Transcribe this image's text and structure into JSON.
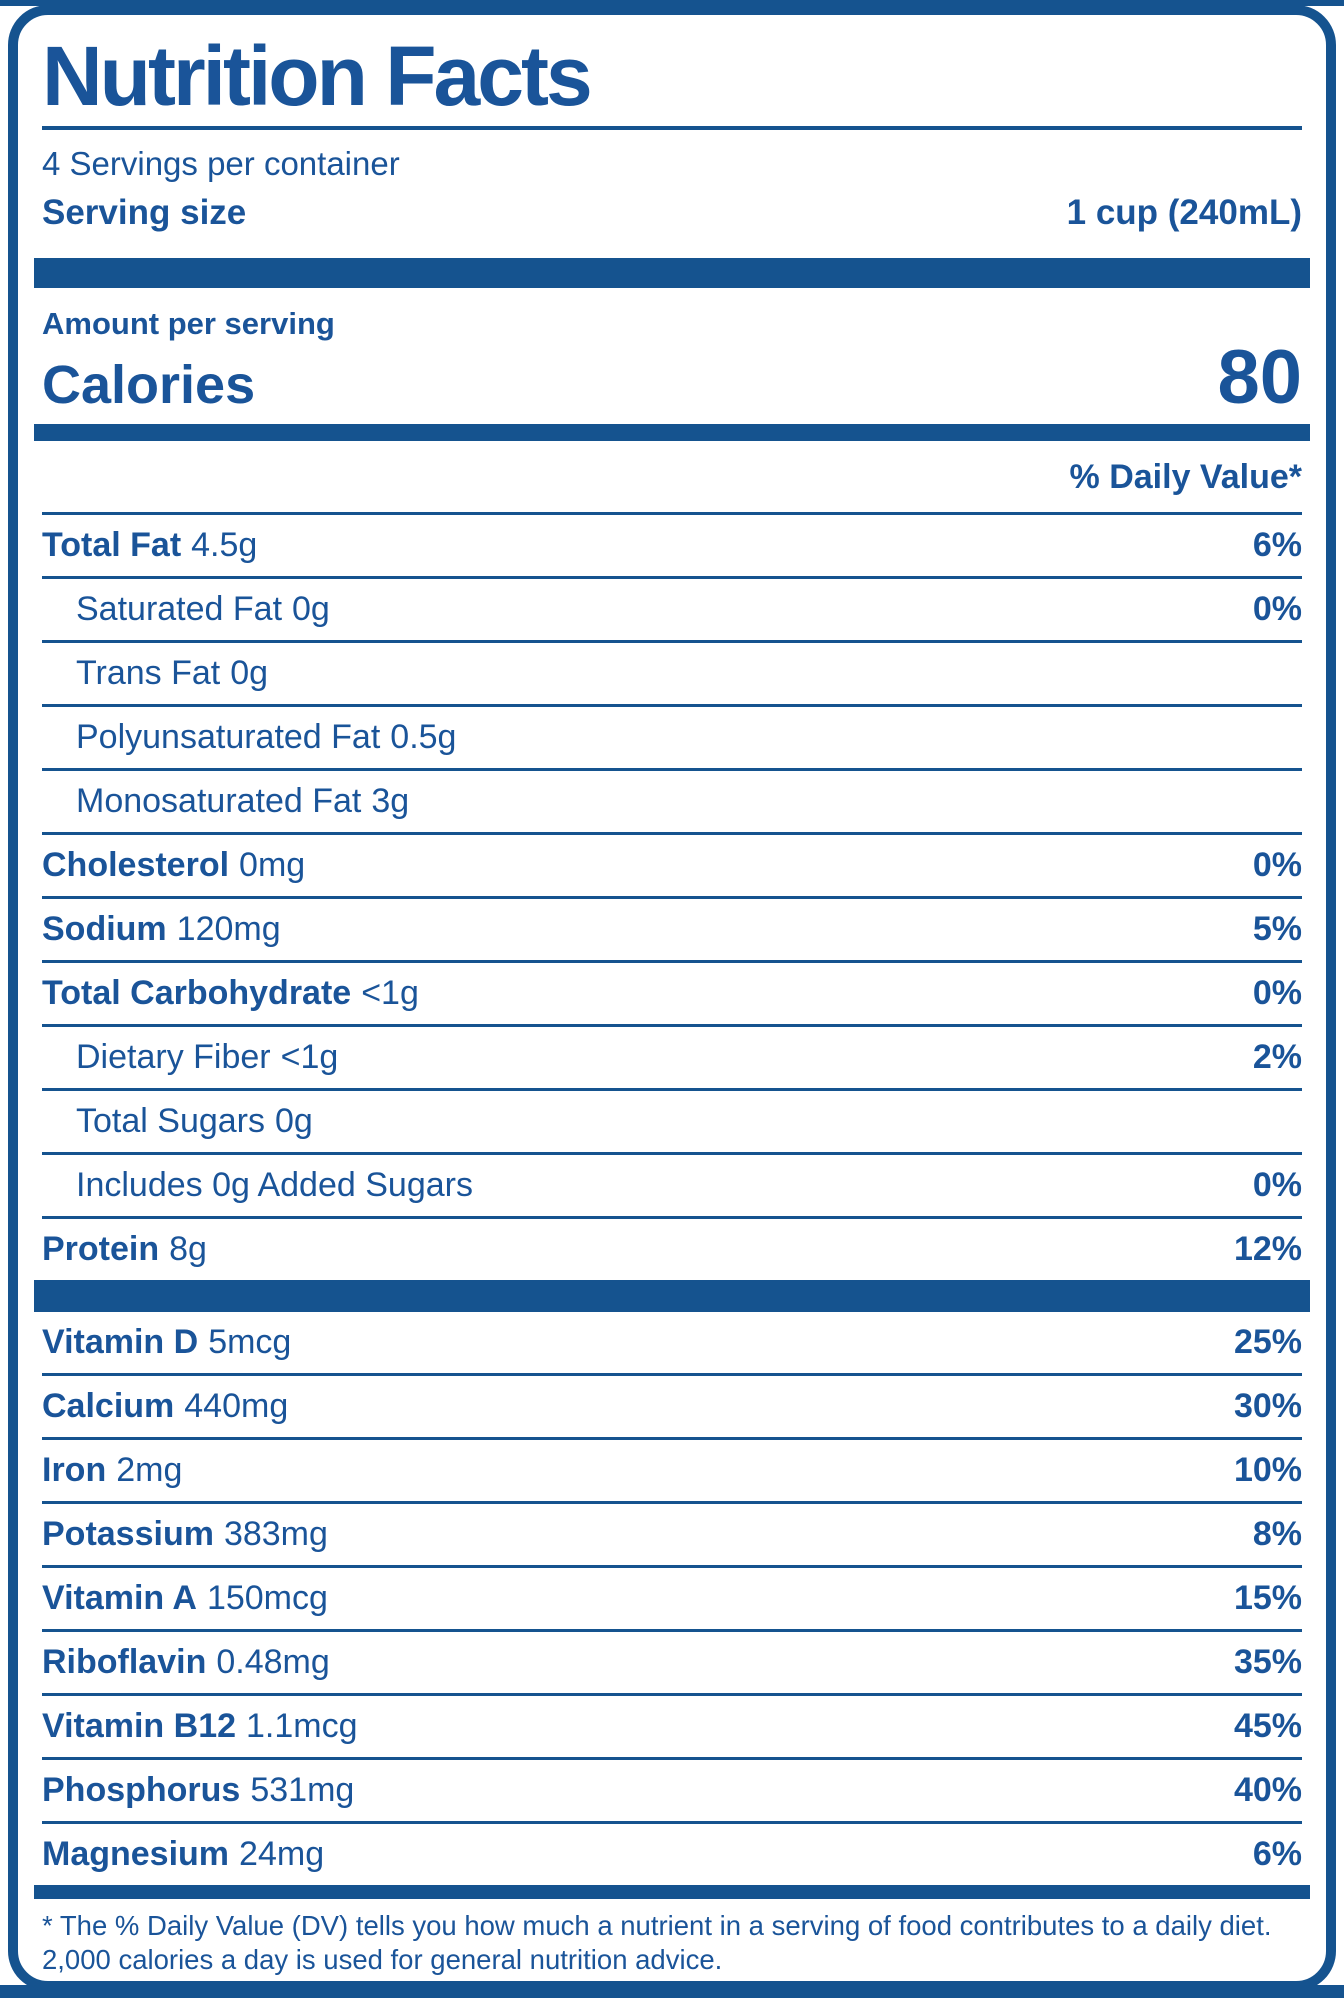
{
  "label": {
    "title": "Nutrition Facts",
    "servings_per_container": "4 Servings per container",
    "serving_size_label": "Serving size",
    "serving_size_value": "1 cup (240mL)",
    "amount_per_serving": "Amount per serving",
    "calories_label": "Calories",
    "calories_value": "80",
    "daily_value_header": "% Daily Value*",
    "footnote": "* The % Daily Value (DV) tells you how much a nutrient in a serving of food contributes to a daily diet. 2,000 calories a day is used for general nutrition advice."
  },
  "colors": {
    "label_blue": "#15538F",
    "text_blue": "#1A5499"
  },
  "nutrient_rows": [
    {
      "name": "Total Fat",
      "amount": "4.5g",
      "percent": "6%",
      "bold": true,
      "indent": false
    },
    {
      "name": "Saturated Fat",
      "amount": "0g",
      "percent": "0%",
      "bold": false,
      "indent": true
    },
    {
      "name": "Trans Fat",
      "amount": "0g",
      "percent": "",
      "bold": false,
      "indent": true
    },
    {
      "name": "Polyunsaturated Fat",
      "amount": "0.5g",
      "percent": "",
      "bold": false,
      "indent": true
    },
    {
      "name": "Monosaturated Fat",
      "amount": "3g",
      "percent": "",
      "bold": false,
      "indent": true
    },
    {
      "name": "Cholesterol",
      "amount": "0mg",
      "percent": "0%",
      "bold": true,
      "indent": false
    },
    {
      "name": "Sodium",
      "amount": "120mg",
      "percent": "5%",
      "bold": true,
      "indent": false
    },
    {
      "name": "Total Carbohydrate",
      "amount": "<1g",
      "percent": "0%",
      "bold": true,
      "indent": false
    },
    {
      "name": "Dietary Fiber",
      "amount": "<1g",
      "percent": "2%",
      "bold": false,
      "indent": true
    },
    {
      "name": "Total Sugars",
      "amount": "0g",
      "percent": "",
      "bold": false,
      "indent": true
    },
    {
      "name": "Includes 0g Added Sugars",
      "amount": "",
      "percent": "0%",
      "bold": false,
      "indent": true
    },
    {
      "name": "Protein",
      "amount": "8g",
      "percent": "12%",
      "bold": true,
      "indent": false
    }
  ],
  "vitamin_rows": [
    {
      "name": "Vitamin D",
      "amount": "5mcg",
      "percent": "25%",
      "bold": true,
      "indent": false
    },
    {
      "name": "Calcium",
      "amount": "440mg",
      "percent": "30%",
      "bold": true,
      "indent": false
    },
    {
      "name": "Iron",
      "amount": "2mg",
      "percent": "10%",
      "bold": true,
      "indent": false
    },
    {
      "name": "Potassium",
      "amount": "383mg",
      "percent": "8%",
      "bold": true,
      "indent": false
    },
    {
      "name": "Vitamin A",
      "amount": "150mcg",
      "percent": "15%",
      "bold": true,
      "indent": false
    },
    {
      "name": "Riboflavin",
      "amount": "0.48mg",
      "percent": "35%",
      "bold": true,
      "indent": false
    },
    {
      "name": "Vitamin B12",
      "amount": "1.1mcg",
      "percent": "45%",
      "bold": true,
      "indent": false
    },
    {
      "name": "Phosphorus",
      "amount": "531mg",
      "percent": "40%",
      "bold": true,
      "indent": false
    },
    {
      "name": "Magnesium",
      "amount": "24mg",
      "percent": "6%",
      "bold": true,
      "indent": false
    }
  ]
}
